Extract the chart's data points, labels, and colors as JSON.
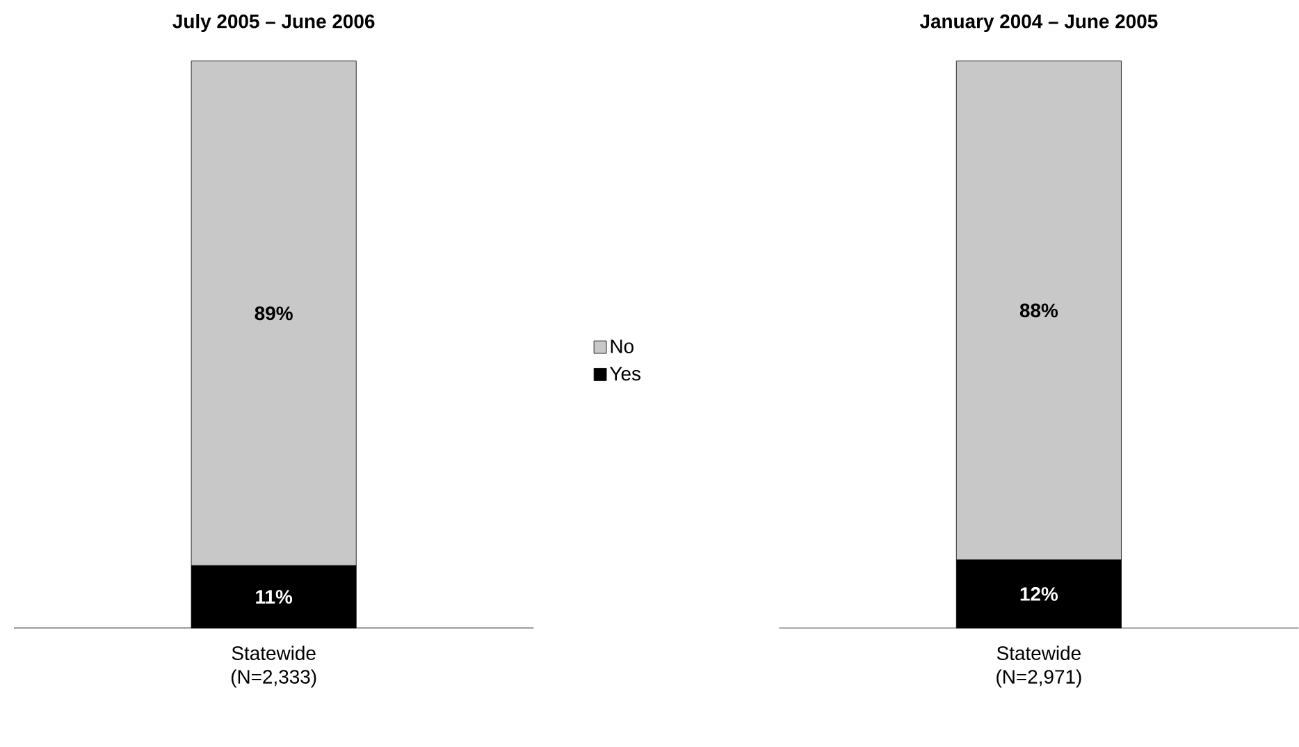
{
  "chart_data": [
    {
      "type": "bar",
      "title": "July 2005 – June 2006",
      "categories": [
        "Statewide (N=2,333)"
      ],
      "stacked": true,
      "legend": "right",
      "series": [
        {
          "name": "Yes",
          "color": "#000000",
          "values": [
            11
          ],
          "value_labels": [
            "11%"
          ]
        },
        {
          "name": "No",
          "color": "#c8c8c8",
          "values": [
            89
          ],
          "value_labels": [
            "89%"
          ]
        }
      ]
    },
    {
      "type": "bar",
      "title": "January 2004 – June 2005",
      "categories": [
        "Statewide (N=2,971)"
      ],
      "stacked": true,
      "series": [
        {
          "color": "#000000",
          "values": [
            12
          ],
          "value_labels": [
            "12%"
          ]
        },
        {
          "color": "#c8c8c8",
          "values": [
            88
          ],
          "value_labels": [
            "88%"
          ]
        }
      ]
    }
  ]
}
